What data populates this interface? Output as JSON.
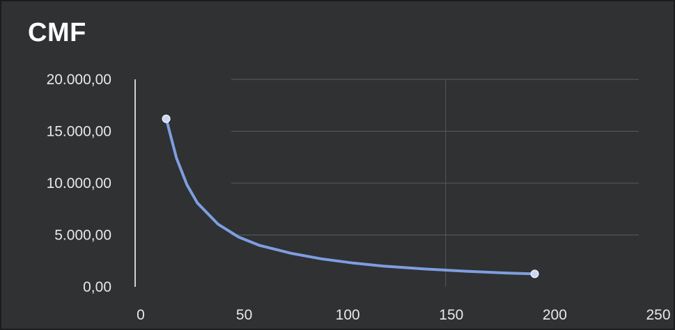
{
  "chart_data": {
    "type": "scatter",
    "title": "CMF",
    "xlabel": "",
    "ylabel": "",
    "xlim": [
      0,
      250
    ],
    "ylim": [
      0,
      20000
    ],
    "x_ticks": [
      "0",
      "50",
      "100",
      "150",
      "200",
      "250"
    ],
    "y_ticks": [
      "0,00",
      "5.000,00",
      "10.000,00",
      "15.000,00",
      "20.000,00"
    ],
    "grid": true,
    "legend": "none",
    "series": [
      {
        "points": [
          {
            "x": 15,
            "y": 16200
          },
          {
            "x": 193,
            "y": 1250
          }
        ],
        "trendline": [
          {
            "x": 15,
            "y": 16200
          },
          {
            "x": 20,
            "y": 12400
          },
          {
            "x": 25,
            "y": 9850
          },
          {
            "x": 30,
            "y": 8100
          },
          {
            "x": 40,
            "y": 6050
          },
          {
            "x": 50,
            "y": 4800
          },
          {
            "x": 60,
            "y": 4000
          },
          {
            "x": 75,
            "y": 3250
          },
          {
            "x": 90,
            "y": 2700
          },
          {
            "x": 105,
            "y": 2300
          },
          {
            "x": 120,
            "y": 2000
          },
          {
            "x": 140,
            "y": 1720
          },
          {
            "x": 160,
            "y": 1500
          },
          {
            "x": 180,
            "y": 1330
          },
          {
            "x": 193,
            "y": 1250
          }
        ],
        "color": "#7f9ee0",
        "marker_color": "#c8d8f4"
      }
    ]
  }
}
